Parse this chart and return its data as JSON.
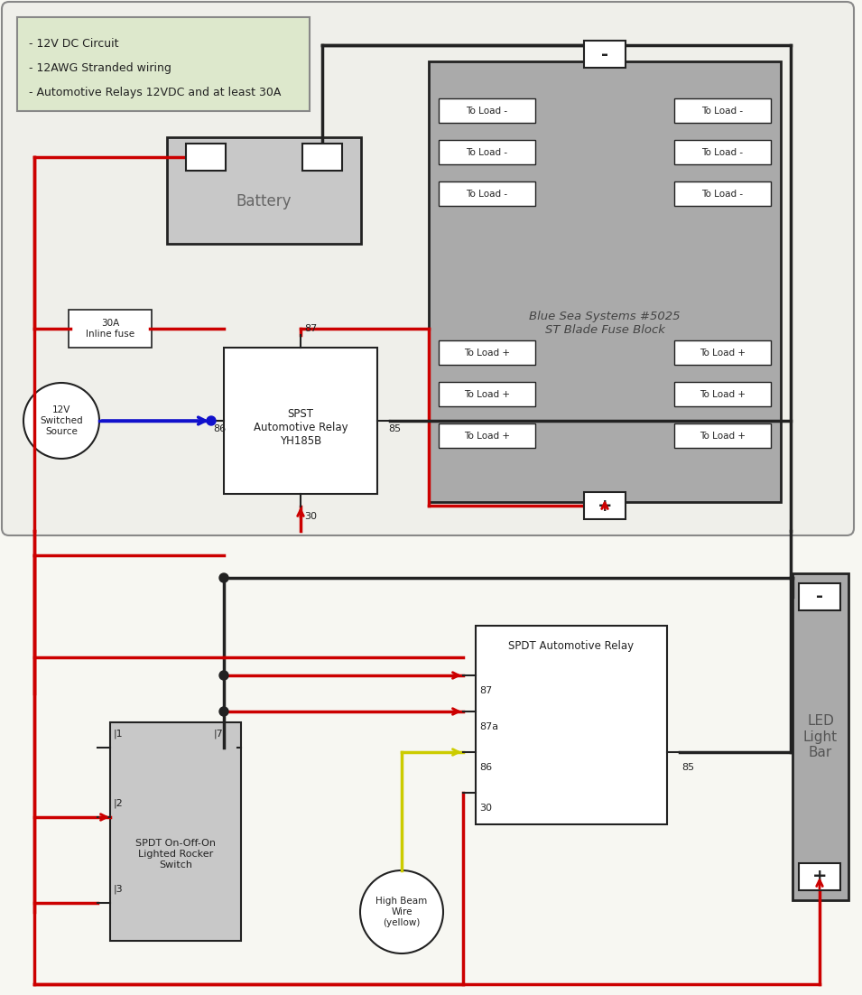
{
  "bg_color": "#f7f7f2",
  "top_bg": "#efefea",
  "notes_bg": "#dde8cc",
  "title_lines": [
    "- 12V DC Circuit",
    "- 12AWG Stranded wiring",
    "- Automotive Relays 12VDC and at least 30A"
  ],
  "red": "#cc0000",
  "black": "#222222",
  "blue": "#1111cc",
  "yellow": "#cccc00",
  "comp_gray": "#aaaaaa",
  "light_gray": "#c8c8c8",
  "white": "#ffffff",
  "dark_gray": "#555555",
  "border_gray": "#888888",
  "fuse_block_text": "Blue Sea Systems #5025\nST Blade Fuse Block",
  "relay1_text": "SPST\nAutomotive Relay\nYH185B",
  "relay2_text": "SPDT Automotive Relay",
  "switch_text": "SPDT On-Off-On\nLighted Rocker\nSwitch",
  "hb_text": "High Beam\nWire\n(yellow)",
  "led_text": "LED\nLight\nBar",
  "battery_text": "Battery",
  "source_text": "12V\nSwitched\nSource",
  "fuse_text": "30A\nInline fuse"
}
